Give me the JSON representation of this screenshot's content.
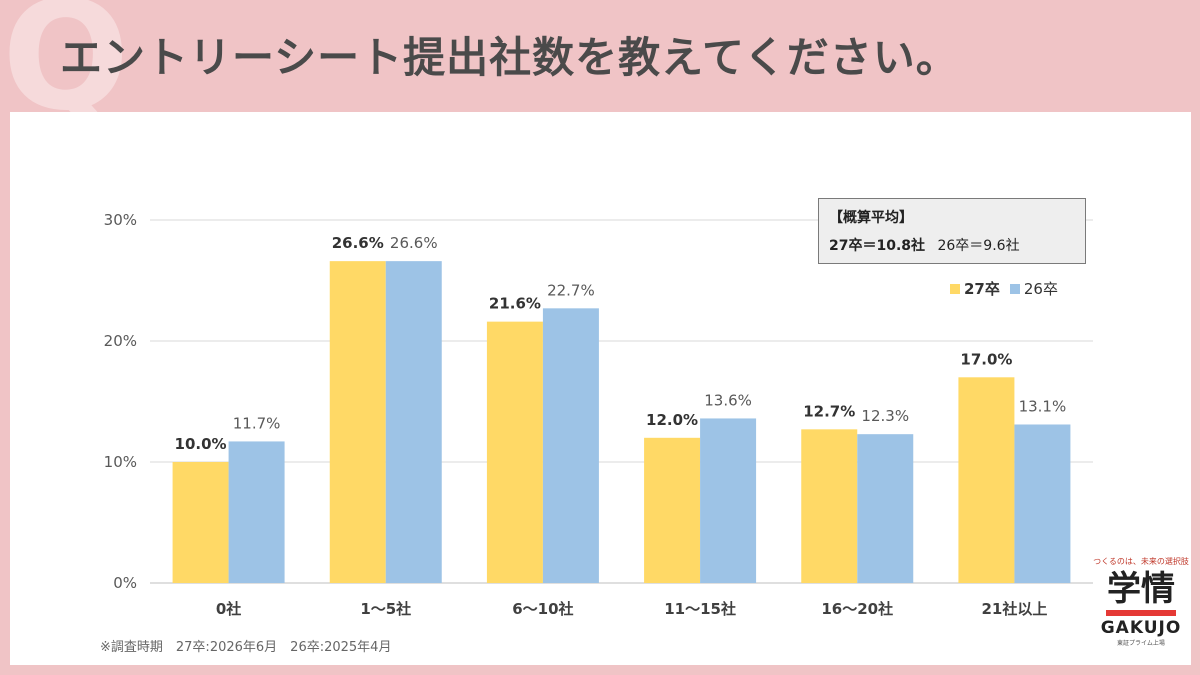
{
  "page": {
    "title": "エントリーシート提出社数を教えてください。"
  },
  "chart_data": {
    "type": "bar",
    "categories": [
      "0社",
      "1～5社",
      "6～10社",
      "11～15社",
      "16～20社",
      "21社以上"
    ],
    "series": [
      {
        "name": "27卒",
        "values": [
          10.0,
          26.6,
          21.6,
          12.0,
          12.7,
          17.0
        ],
        "labels": [
          "10.0%",
          "26.6%",
          "21.6%",
          "12.0%",
          "12.7%",
          "17.0%"
        ],
        "color": "#ffd966"
      },
      {
        "name": "26卒",
        "values": [
          11.7,
          26.6,
          22.7,
          13.6,
          12.3,
          13.1
        ],
        "labels": [
          "11.7%",
          "26.6%",
          "22.7%",
          "13.6%",
          "12.3%",
          "13.1%"
        ],
        "color": "#9dc3e6"
      }
    ],
    "yticks": [
      "0%",
      "10%",
      "20%",
      "30%"
    ],
    "ylim": [
      0,
      30
    ],
    "grid": true,
    "legend": "top-right"
  },
  "average_box": {
    "heading": "【概算平均】",
    "value_27": "27卒＝10.8社",
    "value_26": "26卒＝9.6社"
  },
  "legend": {
    "label_27": "27卒",
    "label_26": "26卒",
    "color_27": "#ffd966",
    "color_26": "#9dc3e6"
  },
  "footnote": "※調査時期　27卒:2026年6月　26卒:2025年4月",
  "logo": {
    "tagline": "つくるのは、未来の選択肢",
    "mark": "学情",
    "name": "GAKUJO",
    "sub": "東証プライム上場"
  }
}
